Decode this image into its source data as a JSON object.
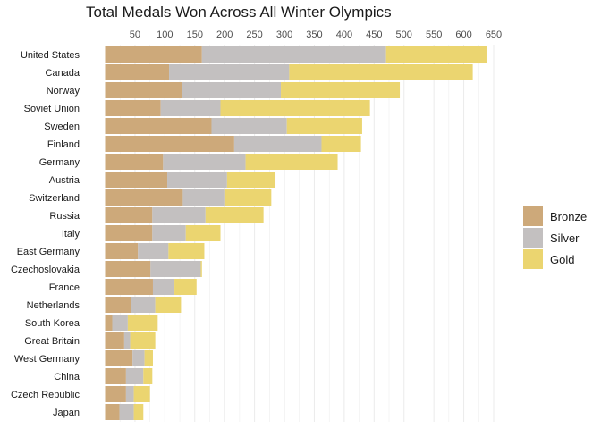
{
  "chart_data": {
    "type": "bar",
    "orientation": "horizontal",
    "stacked": true,
    "title": "Total Medals Won Across All Winter Olympics",
    "xlabel": "",
    "ylabel": "",
    "xlim": [
      0,
      650
    ],
    "xticks": [
      50,
      100,
      150,
      200,
      250,
      300,
      350,
      400,
      450,
      500,
      550,
      600,
      650
    ],
    "x_axis_position": "top",
    "grid": true,
    "legend_position": "right",
    "categories": [
      "United States",
      "Canada",
      "Norway",
      "Soviet Union",
      "Sweden",
      "Finland",
      "Germany",
      "Austria",
      "Switzerland",
      "Russia",
      "Italy",
      "East Germany",
      "Czechoslovakia",
      "France",
      "Netherlands",
      "South Korea",
      "Great Britain",
      "West Germany",
      "China",
      "Czech Republic",
      "Japan"
    ],
    "series": [
      {
        "name": "Bronze",
        "color": "#cda97a",
        "values": [
          162,
          107,
          128,
          93,
          178,
          216,
          97,
          104,
          130,
          79,
          79,
          55,
          76,
          80,
          44,
          12,
          32,
          46,
          35,
          35,
          24
        ]
      },
      {
        "name": "Silver",
        "color": "#c3c0c0",
        "values": [
          308,
          201,
          166,
          100,
          126,
          146,
          138,
          100,
          71,
          89,
          56,
          51,
          84,
          36,
          40,
          26,
          10,
          20,
          29,
          13,
          24
        ]
      },
      {
        "name": "Gold",
        "color": "#ebd570",
        "values": [
          168,
          307,
          199,
          250,
          126,
          66,
          154,
          81,
          77,
          97,
          58,
          60,
          2,
          37,
          43,
          50,
          42,
          14,
          15,
          27,
          16
        ]
      }
    ]
  },
  "colors": {
    "background": "#ffffff",
    "grid": "#ebebeb",
    "text": "#1a1a1a",
    "tick_text": "#4d4d4d"
  }
}
